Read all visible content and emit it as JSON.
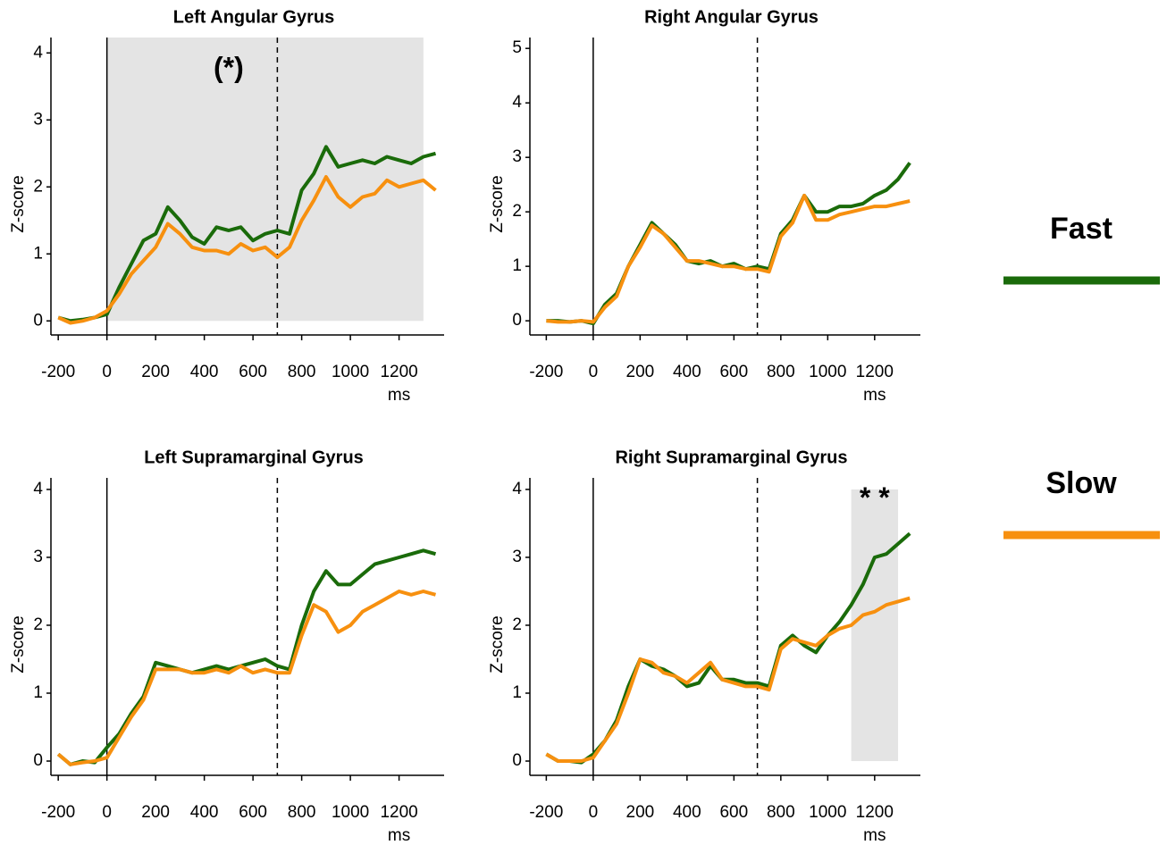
{
  "chart_data": [
    {
      "type": "line",
      "title": "Left Angular Gyrus",
      "y_label": "Z-score",
      "x_label": "ms",
      "x": [
        -200,
        -150,
        -100,
        -50,
        0,
        50,
        100,
        150,
        200,
        250,
        300,
        350,
        400,
        450,
        500,
        550,
        600,
        650,
        700,
        750,
        800,
        850,
        900,
        950,
        1000,
        1050,
        1100,
        1150,
        1200,
        1250,
        1300,
        1350
      ],
      "series": [
        {
          "name": "Fast",
          "color": "#1a6b0a",
          "values": [
            0.05,
            0,
            0.02,
            0.05,
            0.1,
            0.5,
            0.85,
            1.2,
            1.3,
            1.7,
            1.5,
            1.25,
            1.15,
            1.4,
            1.35,
            1.4,
            1.2,
            1.3,
            1.35,
            1.3,
            1.95,
            2.2,
            2.6,
            2.3,
            2.35,
            2.4,
            2.35,
            2.45,
            2.4,
            2.35,
            2.45,
            2.5
          ]
        },
        {
          "name": "Slow",
          "color": "#f7900f",
          "values": [
            0.05,
            -0.03,
            0,
            0.05,
            0.15,
            0.4,
            0.7,
            0.9,
            1.1,
            1.45,
            1.3,
            1.1,
            1.05,
            1.05,
            1.0,
            1.15,
            1.05,
            1.1,
            0.95,
            1.1,
            1.5,
            1.8,
            2.15,
            1.85,
            1.7,
            1.85,
            1.9,
            2.1,
            2.0,
            2.05,
            2.1,
            1.95
          ]
        }
      ],
      "xlim": [
        -230,
        1385
      ],
      "ylim": [
        -0.21,
        4.23
      ],
      "xticks": [
        -200,
        0,
        200,
        400,
        600,
        800,
        1000,
        1200
      ],
      "yticks": [
        0,
        1,
        2,
        3,
        4
      ],
      "vlines": [
        {
          "x": 0,
          "style": "solid"
        },
        {
          "x": 700,
          "style": "dashed"
        }
      ],
      "shade": {
        "x": [
          0,
          1300
        ],
        "y": [
          0,
          4.23
        ]
      },
      "annotation": {
        "text": "(*)",
        "x": 500,
        "y": 3.75
      }
    },
    {
      "type": "line",
      "title": "Right Angular Gyrus",
      "y_label": "Z-score",
      "x_label": "ms",
      "x": [
        -200,
        -150,
        -100,
        -50,
        0,
        50,
        100,
        150,
        200,
        250,
        300,
        350,
        400,
        450,
        500,
        550,
        600,
        650,
        700,
        750,
        800,
        850,
        900,
        950,
        1000,
        1050,
        1100,
        1150,
        1200,
        1250,
        1300,
        1350
      ],
      "series": [
        {
          "name": "Fast",
          "color": "#1a6b0a",
          "values": [
            0,
            0,
            -0.02,
            0,
            -0.05,
            0.3,
            0.5,
            1.0,
            1.4,
            1.8,
            1.6,
            1.4,
            1.1,
            1.05,
            1.1,
            1.0,
            1.05,
            0.95,
            1.0,
            0.95,
            1.6,
            1.85,
            2.3,
            2.0,
            2.0,
            2.1,
            2.1,
            2.15,
            2.3,
            2.4,
            2.6,
            2.9
          ]
        },
        {
          "name": "Slow",
          "color": "#f7900f",
          "values": [
            0,
            -0.02,
            -0.02,
            0,
            -0.02,
            0.25,
            0.45,
            1.0,
            1.35,
            1.75,
            1.6,
            1.35,
            1.1,
            1.1,
            1.05,
            1.0,
            1.0,
            0.95,
            0.95,
            0.9,
            1.55,
            1.8,
            2.3,
            1.85,
            1.85,
            1.95,
            2.0,
            2.05,
            2.1,
            2.1,
            2.15,
            2.2
          ]
        }
      ],
      "xlim": [
        -270,
        1395
      ],
      "ylim": [
        -0.26,
        5.2
      ],
      "xticks": [
        -200,
        0,
        200,
        400,
        600,
        800,
        1000,
        1200
      ],
      "yticks": [
        0,
        1,
        2,
        3,
        4,
        5
      ],
      "vlines": [
        {
          "x": 0,
          "style": "solid"
        },
        {
          "x": 700,
          "style": "dashed"
        }
      ]
    },
    {
      "type": "line",
      "title": "Left Supramarginal Gyrus",
      "y_label": "Z-score",
      "x_label": "ms",
      "x": [
        -200,
        -150,
        -100,
        -50,
        0,
        50,
        100,
        150,
        200,
        250,
        300,
        350,
        400,
        450,
        500,
        550,
        600,
        650,
        700,
        750,
        800,
        850,
        900,
        950,
        1000,
        1050,
        1100,
        1150,
        1200,
        1250,
        1300,
        1350
      ],
      "series": [
        {
          "name": "Fast",
          "color": "#1a6b0a",
          "values": [
            0.1,
            -0.05,
            0,
            -0.02,
            0.2,
            0.4,
            0.7,
            0.95,
            1.45,
            1.4,
            1.35,
            1.3,
            1.35,
            1.4,
            1.35,
            1.4,
            1.45,
            1.5,
            1.4,
            1.35,
            2.0,
            2.5,
            2.8,
            2.6,
            2.6,
            2.75,
            2.9,
            2.95,
            3.0,
            3.05,
            3.1,
            3.05
          ]
        },
        {
          "name": "Slow",
          "color": "#f7900f",
          "values": [
            0.1,
            -0.05,
            -0.02,
            0,
            0.05,
            0.35,
            0.65,
            0.9,
            1.35,
            1.35,
            1.35,
            1.3,
            1.3,
            1.35,
            1.3,
            1.4,
            1.3,
            1.35,
            1.3,
            1.3,
            1.85,
            2.3,
            2.2,
            1.9,
            2.0,
            2.2,
            2.3,
            2.4,
            2.5,
            2.45,
            2.5,
            2.45
          ]
        }
      ],
      "xlim": [
        -230,
        1385
      ],
      "ylim": [
        -0.21,
        4.17
      ],
      "xticks": [
        -200,
        0,
        200,
        400,
        600,
        800,
        1000,
        1200
      ],
      "yticks": [
        0,
        1,
        2,
        3,
        4
      ],
      "vlines": [
        {
          "x": 0,
          "style": "solid"
        },
        {
          "x": 700,
          "style": "dashed"
        }
      ]
    },
    {
      "type": "line",
      "title": "Right Supramarginal Gyrus",
      "y_label": "Z-score",
      "x_label": "ms",
      "x": [
        -200,
        -150,
        -100,
        -50,
        0,
        50,
        100,
        150,
        200,
        250,
        300,
        350,
        400,
        450,
        500,
        550,
        600,
        650,
        700,
        750,
        800,
        850,
        900,
        950,
        1000,
        1050,
        1100,
        1150,
        1200,
        1250,
        1300,
        1350
      ],
      "series": [
        {
          "name": "Fast",
          "color": "#1a6b0a",
          "values": [
            0.1,
            0,
            0,
            -0.02,
            0.1,
            0.3,
            0.6,
            1.1,
            1.5,
            1.4,
            1.35,
            1.25,
            1.1,
            1.15,
            1.4,
            1.2,
            1.2,
            1.15,
            1.15,
            1.1,
            1.7,
            1.85,
            1.7,
            1.6,
            1.85,
            2.05,
            2.3,
            2.6,
            3.0,
            3.05,
            3.2,
            3.35
          ]
        },
        {
          "name": "Slow",
          "color": "#f7900f",
          "values": [
            0.1,
            0,
            0,
            0,
            0.05,
            0.3,
            0.55,
            1.0,
            1.5,
            1.45,
            1.3,
            1.25,
            1.15,
            1.3,
            1.45,
            1.2,
            1.15,
            1.1,
            1.1,
            1.05,
            1.65,
            1.8,
            1.75,
            1.7,
            1.85,
            1.95,
            2.0,
            2.15,
            2.2,
            2.3,
            2.35,
            2.4
          ]
        }
      ],
      "xlim": [
        -270,
        1395
      ],
      "ylim": [
        -0.21,
        4.17
      ],
      "xticks": [
        -200,
        0,
        200,
        400,
        600,
        800,
        1000,
        1200
      ],
      "yticks": [
        0,
        1,
        2,
        3,
        4
      ],
      "vlines": [
        {
          "x": 0,
          "style": "solid"
        },
        {
          "x": 700,
          "style": "dashed"
        }
      ],
      "shade": {
        "x": [
          1100,
          1300
        ],
        "y": [
          0,
          4.0
        ]
      },
      "annotation": {
        "text": "* *",
        "x": 1200,
        "y": 3.85
      }
    }
  ]
}
